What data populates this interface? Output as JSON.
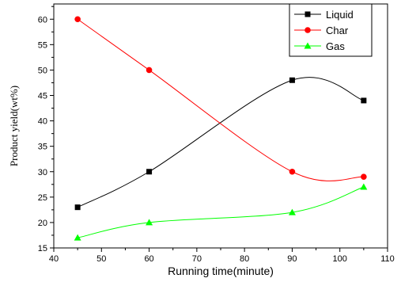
{
  "chart_data": {
    "type": "line",
    "title": "",
    "xlabel": "Running time(minute)",
    "ylabel": "Product yield(wt%)",
    "xlim": [
      40,
      110
    ],
    "ylim": [
      15,
      63
    ],
    "xticks": [
      40,
      50,
      60,
      70,
      80,
      90,
      100,
      110
    ],
    "yticks": [
      15,
      20,
      25,
      30,
      35,
      40,
      45,
      50,
      55,
      60
    ],
    "grid": false,
    "legend_position": "top-right",
    "x": [
      45,
      60,
      90,
      105
    ],
    "series": [
      {
        "name": "Liquid",
        "values": [
          23,
          30,
          48,
          44
        ],
        "color": "#000000",
        "marker": "square"
      },
      {
        "name": "Char",
        "values": [
          60,
          50,
          30,
          29
        ],
        "color": "#ff0000",
        "marker": "circle"
      },
      {
        "name": "Gas",
        "values": [
          17,
          20,
          22,
          27
        ],
        "color": "#00ff00",
        "marker": "triangle"
      }
    ]
  }
}
